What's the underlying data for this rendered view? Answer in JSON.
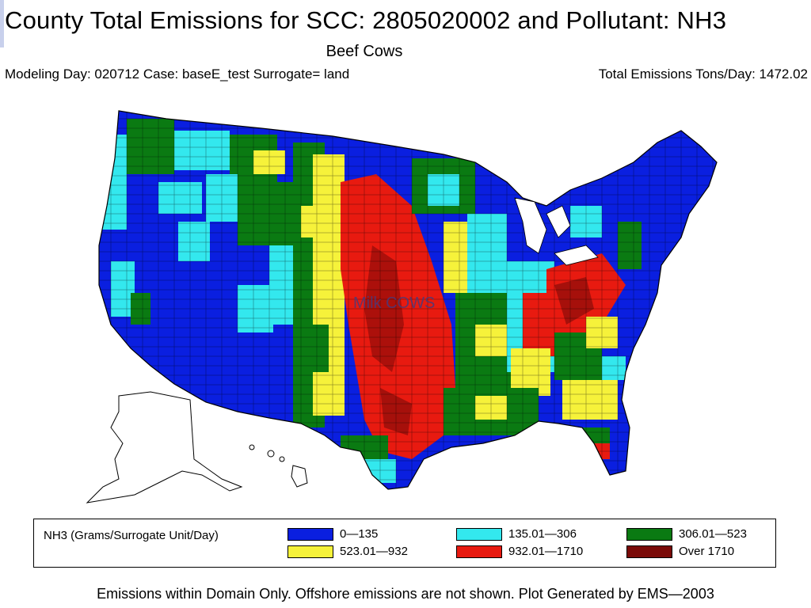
{
  "title": "County Total Emissions for SCC: 2805020002 and Pollutant: NH3",
  "subtitle": "Beef Cows",
  "info_left": "Modeling Day: 020712 Case: baseE_test Surrogate=  land",
  "info_right": "Total Emissions Tons/Day: 1472.02",
  "overlay_label": "Milk COWS",
  "legend": {
    "title": "NH3 (Grams/Surrogate Unit/Day)",
    "items": [
      {
        "label": "0—135",
        "color": "#0a1fe0"
      },
      {
        "label": "135.01—306",
        "color": "#33e8ee"
      },
      {
        "label": "306.01—523",
        "color": "#0a7a12"
      },
      {
        "label": "523.01—932",
        "color": "#f6f23a"
      },
      {
        "label": "932.01—1710",
        "color": "#e81a10"
      },
      {
        "label": "Over 1710",
        "color": "#7a0a08"
      }
    ]
  },
  "footer": "Emissions within Domain Only. Offshore emissions are not shown. Plot Generated by EMS—2003"
}
